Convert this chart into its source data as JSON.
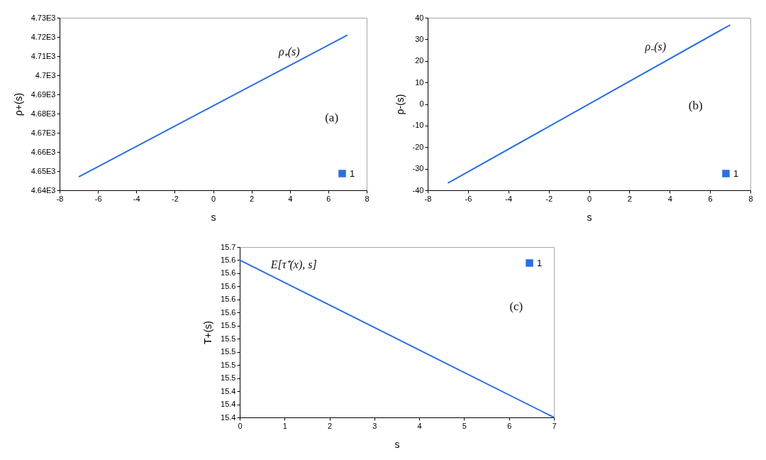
{
  "chart_data": [
    {
      "type": "line",
      "xlabel": "s",
      "ylabel": "ρ+(s)",
      "x": [
        -7,
        7
      ],
      "series": [
        {
          "name": "1",
          "color": "#2a6fe0",
          "values": [
            4647,
            4721
          ]
        }
      ],
      "xlim": [
        -8,
        8
      ],
      "xticks": [
        -8,
        -6,
        -4,
        -2,
        0,
        2,
        4,
        6,
        8
      ],
      "ylim": [
        4640,
        4730
      ],
      "yticks": [
        {
          "value": 4640,
          "label": "4.64E3"
        },
        {
          "value": 4650,
          "label": "4.65E3"
        },
        {
          "value": 4660,
          "label": "4.66E3"
        },
        {
          "value": 4670,
          "label": "4.67E3"
        },
        {
          "value": 4680,
          "label": "4.68E3"
        },
        {
          "value": 4690,
          "label": "4.69E3"
        },
        {
          "value": 4700,
          "label": "4.7E3"
        },
        {
          "value": 4710,
          "label": "4.71E3"
        },
        {
          "value": 4720,
          "label": "4.72E3"
        },
        {
          "value": 4730,
          "label": "4.73E3"
        }
      ],
      "legend": "bottom right",
      "annotations": [
        "ρ₊(s)",
        "(a)"
      ]
    },
    {
      "type": "line",
      "xlabel": "s",
      "ylabel": "ρ-(s)",
      "x": [
        -7,
        7
      ],
      "series": [
        {
          "name": "1",
          "color": "#2a6fe0",
          "values": [
            -36.7,
            36.7
          ]
        }
      ],
      "xlim": [
        -8,
        8
      ],
      "xticks": [
        -8,
        -6,
        -4,
        -2,
        0,
        2,
        4,
        6,
        8
      ],
      "ylim": [
        -40,
        40
      ],
      "yticks": [
        -40,
        -30,
        -20,
        -10,
        0,
        10,
        20,
        30,
        40
      ],
      "legend": "bottom right",
      "annotations": [
        "ρ₋(s)",
        "(b)"
      ]
    },
    {
      "type": "line",
      "xlabel": "s",
      "ylabel": "T+(s)",
      "x": [
        0,
        7
      ],
      "series": [
        {
          "name": "1",
          "color": "#2a6fe0",
          "values": [
            15.64,
            15.4
          ]
        }
      ],
      "xlim": [
        0,
        7
      ],
      "xticks": [
        0,
        1,
        2,
        3,
        4,
        5,
        6,
        7
      ],
      "ylim": [
        15.4,
        15.66
      ],
      "yticks": [
        15.4,
        {
          "value": 15.42,
          "label": "15.4"
        },
        {
          "value": 15.44,
          "label": "15.4"
        },
        {
          "value": 15.46,
          "label": "15.5"
        },
        {
          "value": 15.48,
          "label": "15.5"
        },
        15.5,
        {
          "value": 15.52,
          "label": "15.5"
        },
        {
          "value": 15.54,
          "label": "15.5"
        },
        {
          "value": 15.56,
          "label": "15.6"
        },
        {
          "value": 15.58,
          "label": "15.6"
        },
        15.6,
        {
          "value": 15.62,
          "label": "15.6"
        },
        {
          "value": 15.64,
          "label": "15.6"
        },
        {
          "value": 15.66,
          "label": "15.7"
        }
      ],
      "legend": "top right",
      "annotations": [
        "E[τ⁺(x), s]",
        "(c)"
      ]
    }
  ]
}
